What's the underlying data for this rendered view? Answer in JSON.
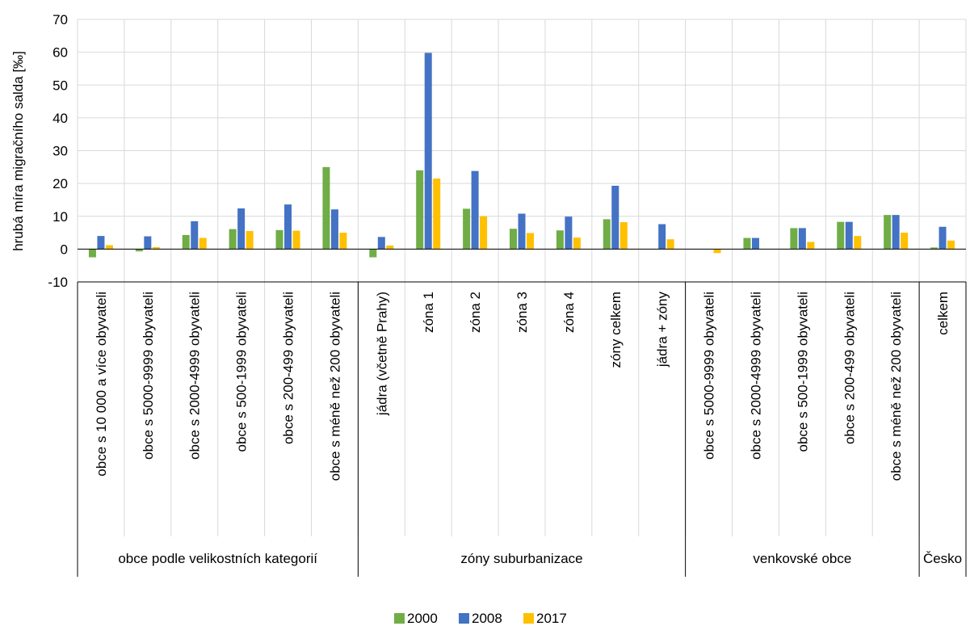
{
  "chart_data": {
    "type": "bar",
    "title": "",
    "ylabel": "hrubá míra migračního salda [‰]",
    "xlabel": "",
    "ylim": [
      -10,
      70
    ],
    "yticks": [
      -10,
      0,
      10,
      20,
      30,
      40,
      50,
      60,
      70
    ],
    "grid": true,
    "legend_position": "bottom",
    "categories": [
      "obce s 10 000 a více obyvateli",
      "obce s 5000-9999 obyvateli",
      "obce s 2000-4999 obyvateli",
      "obce s 500-1999 obyvateli",
      "obce s 200-499 obyvateli",
      "obce s méně než 200 obyvateli",
      "jádra (včetně Prahy)",
      "zóna 1",
      "zóna 2",
      "zóna 3",
      "zóna 4",
      "zóny celkem",
      "jádra + zóny",
      "obce s 5000-9999 obyvateli",
      "obce s 2000-4999 obyvateli",
      "obce s 500-1999 obyvateli",
      "obce s 200-499 obyvateli",
      "obce s méně než 200 obyvateli",
      "celkem"
    ],
    "groups": [
      {
        "label": "obce podle velikostních kategorií",
        "count": 6
      },
      {
        "label": "zóny suburbanizace",
        "count": 7
      },
      {
        "label": "venkovské obce",
        "count": 5
      },
      {
        "label": "Česko",
        "count": 1
      }
    ],
    "series": [
      {
        "name": "2000",
        "color": "#70AD47",
        "values": [
          -2.5,
          -0.7,
          4.3,
          6.1,
          5.8,
          25.0,
          -2.5,
          24.0,
          12.3,
          6.2,
          5.7,
          9.1,
          0.0,
          0.0,
          3.4,
          6.4,
          8.3,
          10.4,
          0.5
        ]
      },
      {
        "name": "2008",
        "color": "#4472C4",
        "values": [
          4.0,
          3.9,
          8.5,
          12.4,
          13.6,
          12.1,
          3.7,
          59.8,
          23.8,
          10.8,
          9.9,
          19.3,
          7.6,
          0.0,
          3.4,
          6.4,
          8.3,
          10.4,
          6.8
        ]
      },
      {
        "name": "2017",
        "color": "#FFC000",
        "values": [
          1.2,
          0.6,
          3.4,
          5.5,
          5.6,
          5.0,
          1.1,
          21.5,
          10.0,
          4.9,
          3.5,
          8.2,
          3.0,
          -1.2,
          0.0,
          2.2,
          4.0,
          5.0,
          2.6
        ]
      }
    ]
  }
}
